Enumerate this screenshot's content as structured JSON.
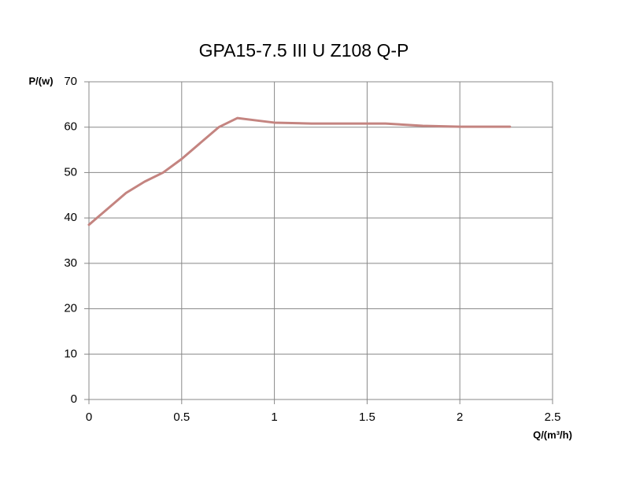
{
  "chart_data": {
    "type": "line",
    "title": "GPA15-7.5 III U Z108 Q-P",
    "y_label": "P/(w)",
    "x_label": "Q/(m³/h)",
    "x": [
      0,
      0.1,
      0.2,
      0.3,
      0.4,
      0.5,
      0.6,
      0.7,
      0.8,
      0.9,
      1.0,
      1.2,
      1.4,
      1.6,
      1.8,
      2.0,
      2.27
    ],
    "series": [
      {
        "name": "P",
        "color": "#c48480",
        "values": [
          38.5,
          42,
          45.5,
          48,
          50,
          53,
          56.5,
          60,
          62,
          61.5,
          61,
          60.8,
          60.8,
          60.8,
          60.3,
          60.1,
          60.1
        ]
      }
    ],
    "xlim": [
      0,
      2.5
    ],
    "xticks": [
      0,
      0.5,
      1,
      1.5,
      2,
      2.5
    ],
    "ylim": [
      0,
      70
    ],
    "yticks": [
      0,
      10,
      20,
      30,
      40,
      50,
      60,
      70
    ],
    "grid": true
  }
}
